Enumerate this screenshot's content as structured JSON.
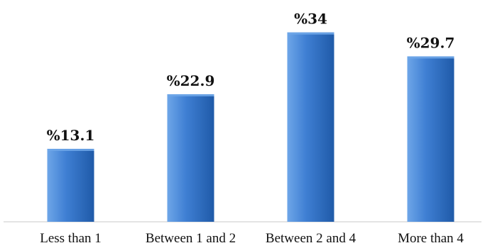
{
  "chart_data": {
    "type": "bar",
    "categories": [
      "Less than 1",
      "Between 1 and 2",
      "Between 2 and 4",
      "More than 4"
    ],
    "values": [
      13.1,
      22.9,
      34,
      29.7
    ],
    "data_labels": [
      "%13.1",
      "%22.9",
      "%34",
      "%29.7"
    ],
    "title": "",
    "xlabel": "",
    "ylabel": "",
    "ylim": [
      0,
      36
    ],
    "grid": false,
    "legend": "none",
    "colors": {
      "bar_light": "#6ea6e8",
      "bar_mid": "#3f7fd3",
      "bar_dark": "#1f5aa8",
      "axis": "#c8c8c8"
    }
  }
}
